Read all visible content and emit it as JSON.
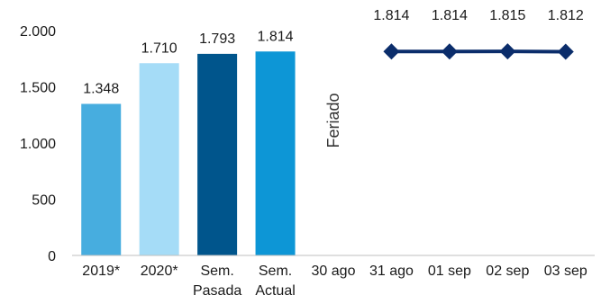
{
  "chart_data": {
    "type": "bar",
    "categories": [
      "2019*",
      "2020*",
      "Sem. Pasada",
      "Sem. Actual",
      "30 ago",
      "31 ago",
      "01 sep",
      "02 sep",
      "03 sep"
    ],
    "category_lines": [
      [
        "2019*"
      ],
      [
        "2020*"
      ],
      [
        "Sem.",
        "Pasada"
      ],
      [
        "Sem.",
        "Actual"
      ],
      [
        "30 ago"
      ],
      [
        "31 ago"
      ],
      [
        "01 sep"
      ],
      [
        "02 sep"
      ],
      [
        "03 sep"
      ]
    ],
    "bars": [
      {
        "category": "2019*",
        "value": 1348,
        "label": "1.348",
        "color": "#47ADDF"
      },
      {
        "category": "2020*",
        "value": 1710,
        "label": "1.710",
        "color": "#A5DCF7"
      },
      {
        "category": "Sem. Pasada",
        "value": 1793,
        "label": "1.793",
        "color": "#00558C"
      },
      {
        "category": "Sem. Actual",
        "value": 1814,
        "label": "1.814",
        "color": "#0D96D6"
      }
    ],
    "line": {
      "color": "#0B2D6B",
      "marker": "diamond",
      "points": [
        {
          "x": "31 ago",
          "y": 1814,
          "label": "1.814"
        },
        {
          "x": "01 sep",
          "y": 1814,
          "label": "1.814"
        },
        {
          "x": "02 sep",
          "y": 1815,
          "label": "1.815"
        },
        {
          "x": "03 sep",
          "y": 1812,
          "label": "1.812"
        }
      ]
    },
    "annotations": [
      {
        "category": "30 ago",
        "text": "Feriado",
        "rotation": "vertical"
      }
    ],
    "yticks": [
      0,
      500,
      1000,
      1500,
      2000
    ],
    "ytick_labels": [
      "0",
      "500",
      "1.000",
      "1.500",
      "2.000"
    ],
    "ylim": [
      0,
      2000
    ],
    "grid": false,
    "legend": "none",
    "title": "",
    "xlabel": "",
    "ylabel": ""
  }
}
